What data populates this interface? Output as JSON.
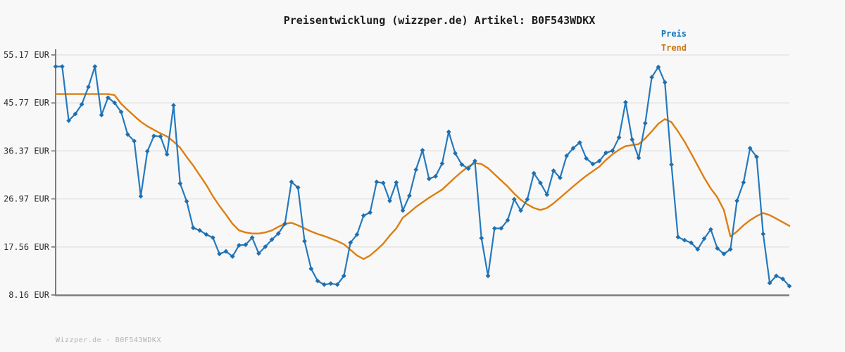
{
  "header": {
    "title": "Preisentwicklung (wizzper.de) Artikel: B0F543WDKX"
  },
  "legend": {
    "items": [
      {
        "label": "Preis",
        "color": "#0e74ba"
      },
      {
        "label": "Trend",
        "color": "#cc750f"
      }
    ]
  },
  "footer": {
    "text": "Wizzper.de - B0F543WDKX"
  },
  "colors": {
    "background": "#f8f8f8",
    "grid": "#e4e4e4",
    "axis": "#7d7d7d",
    "tick_label": "#2e2e2e",
    "price_line": "#2579bd",
    "price_marker": "#1f6fae",
    "trend_line": "#dd7e0f"
  },
  "chart_data": {
    "type": "line",
    "title": "Preisentwicklung (wizzper.de) Artikel: B0F543WDKX",
    "currency": "EUR",
    "xlabel": "",
    "ylabel": "EUR",
    "x_axis_labels_visible": false,
    "grid": "horizontal",
    "legend_position": "top-right",
    "ylim": [
      8.16,
      55.17
    ],
    "y_ticks": [
      {
        "label": "55.17 EUR",
        "value": 55.17
      },
      {
        "label": "45.77 EUR",
        "value": 45.77
      },
      {
        "label": "36.37 EUR",
        "value": 36.37
      },
      {
        "label": "26.97 EUR",
        "value": 26.97
      },
      {
        "label": "17.56 EUR",
        "value": 17.56
      },
      {
        "label": "8.16 EUR",
        "value": 8.16
      }
    ],
    "series": [
      {
        "name": "Preis",
        "markers": true,
        "values": [
          52.9,
          52.9,
          42.3,
          43.6,
          45.5,
          48.9,
          52.9,
          43.4,
          46.8,
          45.8,
          44.0,
          39.6,
          38.3,
          27.5,
          36.3,
          39.3,
          39.2,
          35.7,
          45.3,
          30.0,
          26.5,
          21.3,
          20.8,
          20.0,
          19.4,
          16.2,
          16.7,
          15.7,
          17.9,
          18.0,
          19.4,
          16.3,
          17.6,
          19.0,
          20.2,
          22.1,
          30.3,
          29.2,
          18.7,
          13.3,
          10.9,
          10.2,
          10.4,
          10.2,
          11.9,
          18.4,
          20.0,
          23.7,
          24.3,
          30.3,
          30.1,
          26.6,
          30.2,
          24.7,
          27.6,
          32.7,
          36.5,
          30.9,
          31.4,
          33.9,
          40.1,
          35.9,
          33.7,
          32.9,
          34.4,
          19.3,
          11.9,
          21.2,
          21.2,
          22.8,
          26.9,
          24.7,
          26.9,
          32.0,
          30.1,
          27.8,
          32.5,
          31.1,
          35.4,
          36.9,
          38.0,
          34.9,
          33.8,
          34.4,
          36.0,
          36.4,
          39.0,
          45.9,
          38.6,
          35.0,
          41.8,
          50.8,
          52.8,
          49.8,
          33.7,
          19.5,
          18.9,
          18.4,
          17.1,
          19.2,
          21.0,
          17.3,
          16.2,
          17.1,
          26.6,
          30.2,
          36.9,
          35.2,
          20.1,
          10.5,
          11.9,
          11.3,
          9.9
        ]
      },
      {
        "name": "Trend",
        "markers": false,
        "values": [
          47.5,
          47.5,
          47.5,
          47.5,
          47.5,
          47.5,
          47.5,
          47.5,
          47.5,
          47.3,
          45.6,
          44.4,
          43.2,
          42.1,
          41.2,
          40.5,
          39.8,
          39.2,
          38.2,
          37.0,
          35.2,
          33.5,
          31.6,
          29.7,
          27.5,
          25.6,
          23.9,
          22.1,
          20.8,
          20.4,
          20.2,
          20.2,
          20.4,
          20.8,
          21.5,
          22.1,
          22.3,
          21.8,
          21.2,
          20.6,
          20.1,
          19.7,
          19.2,
          18.7,
          18.1,
          17.0,
          15.9,
          15.2,
          15.9,
          17.0,
          18.2,
          19.8,
          21.2,
          23.3,
          24.3,
          25.4,
          26.3,
          27.2,
          28.0,
          28.8,
          30.0,
          31.2,
          32.3,
          33.3,
          34.0,
          33.8,
          33.0,
          31.8,
          30.6,
          29.4,
          28.0,
          26.8,
          25.9,
          25.2,
          24.8,
          25.2,
          26.1,
          27.2,
          28.3,
          29.4,
          30.5,
          31.5,
          32.4,
          33.3,
          34.6,
          35.7,
          36.6,
          37.3,
          37.5,
          37.7,
          38.8,
          40.2,
          41.7,
          42.6,
          42.0,
          40.2,
          38.2,
          35.9,
          33.5,
          31.1,
          29.0,
          27.3,
          24.8,
          19.6,
          20.6,
          21.8,
          22.8,
          23.6,
          24.2,
          23.8,
          23.1,
          22.4,
          21.7
        ]
      }
    ]
  }
}
